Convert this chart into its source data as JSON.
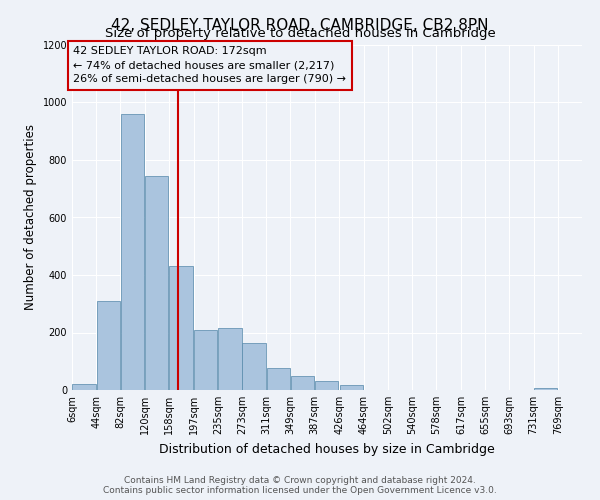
{
  "title": "42, SEDLEY TAYLOR ROAD, CAMBRIDGE, CB2 8PN",
  "subtitle": "Size of property relative to detached houses in Cambridge",
  "xlabel": "Distribution of detached houses by size in Cambridge",
  "ylabel": "Number of detached properties",
  "bin_labels": [
    "6sqm",
    "44sqm",
    "82sqm",
    "120sqm",
    "158sqm",
    "197sqm",
    "235sqm",
    "273sqm",
    "311sqm",
    "349sqm",
    "387sqm",
    "426sqm",
    "464sqm",
    "502sqm",
    "540sqm",
    "578sqm",
    "617sqm",
    "655sqm",
    "693sqm",
    "731sqm",
    "769sqm"
  ],
  "bin_edges": [
    6,
    44,
    82,
    120,
    158,
    197,
    235,
    273,
    311,
    349,
    387,
    426,
    464,
    502,
    540,
    578,
    617,
    655,
    693,
    731,
    769
  ],
  "bar_heights": [
    20,
    310,
    960,
    745,
    430,
    210,
    215,
    165,
    75,
    48,
    33,
    18,
    0,
    0,
    0,
    0,
    0,
    0,
    0,
    8,
    0
  ],
  "bar_color": "#aac4de",
  "bar_edge_color": "#5588aa",
  "vline_x": 172,
  "vline_color": "#cc0000",
  "annotation_line1": "42 SEDLEY TAYLOR ROAD: 172sqm",
  "annotation_line2": "← 74% of detached houses are smaller (2,217)",
  "annotation_line3": "26% of semi-detached houses are larger (790) →",
  "annotation_box_color": "#cc0000",
  "annotation_fontsize": 8.0,
  "ylim": [
    0,
    1200
  ],
  "yticks": [
    0,
    200,
    400,
    600,
    800,
    1000,
    1200
  ],
  "background_color": "#eef2f8",
  "grid_color": "#ffffff",
  "footer_text": "Contains HM Land Registry data © Crown copyright and database right 2024.\nContains public sector information licensed under the Open Government Licence v3.0.",
  "title_fontsize": 11,
  "subtitle_fontsize": 9.5,
  "xlabel_fontsize": 9,
  "ylabel_fontsize": 8.5,
  "tick_fontsize": 7,
  "footer_fontsize": 6.5
}
